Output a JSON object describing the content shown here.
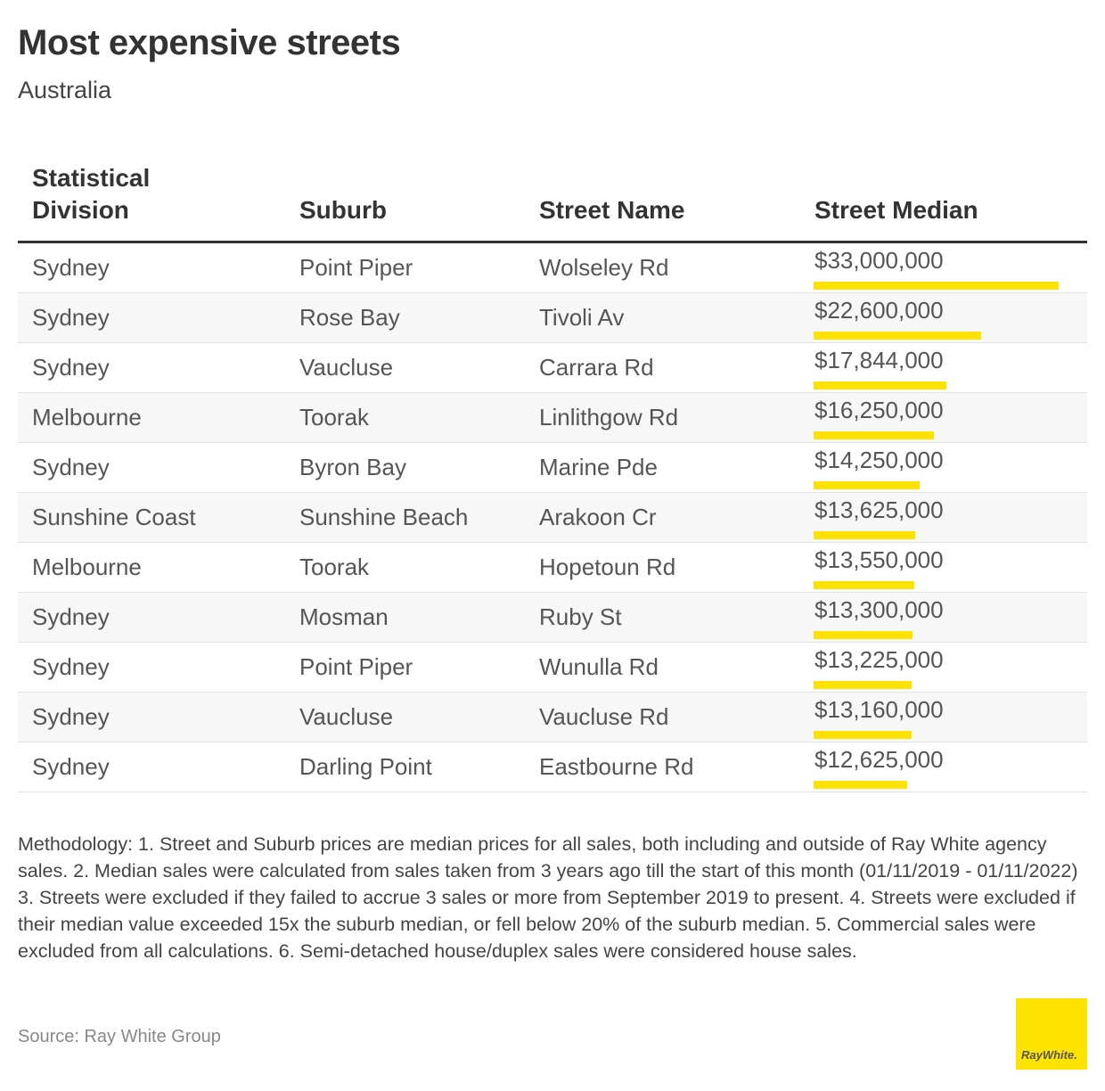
{
  "title": "Most expensive streets",
  "subtitle": "Australia",
  "columns": [
    "Statistical Division",
    "Suburb",
    "Street Name",
    "Street Median"
  ],
  "chart_data": {
    "type": "table",
    "bar_color": "#ffe300",
    "rows": [
      {
        "division": "Sydney",
        "suburb": "Point Piper",
        "street": "Wolseley Rd",
        "median": 33000000,
        "label": "$33,000,000"
      },
      {
        "division": "Sydney",
        "suburb": "Rose Bay",
        "street": "Tivoli Av",
        "median": 22600000,
        "label": "$22,600,000"
      },
      {
        "division": "Sydney",
        "suburb": "Vaucluse",
        "street": "Carrara Rd",
        "median": 17844000,
        "label": "$17,844,000"
      },
      {
        "division": "Melbourne",
        "suburb": "Toorak",
        "street": "Linlithgow Rd",
        "median": 16250000,
        "label": "$16,250,000"
      },
      {
        "division": "Sydney",
        "suburb": "Byron Bay",
        "street": "Marine Pde",
        "median": 14250000,
        "label": "$14,250,000"
      },
      {
        "division": "Sunshine Coast",
        "suburb": "Sunshine Beach",
        "street": "Arakoon Cr",
        "median": 13625000,
        "label": "$13,625,000"
      },
      {
        "division": "Melbourne",
        "suburb": "Toorak",
        "street": "Hopetoun Rd",
        "median": 13550000,
        "label": "$13,550,000"
      },
      {
        "division": "Sydney",
        "suburb": "Mosman",
        "street": "Ruby St",
        "median": 13300000,
        "label": "$13,300,000"
      },
      {
        "division": "Sydney",
        "suburb": "Point Piper",
        "street": "Wunulla Rd",
        "median": 13225000,
        "label": "$13,225,000"
      },
      {
        "division": "Sydney",
        "suburb": "Vaucluse",
        "street": "Vaucluse Rd",
        "median": 13160000,
        "label": "$13,160,000"
      },
      {
        "division": "Sydney",
        "suburb": "Darling Point",
        "street": "Eastbourne Rd",
        "median": 12625000,
        "label": "$12,625,000"
      }
    ]
  },
  "methodology": "Methodology: 1. Street and Suburb prices are median prices for all sales, both including and outside of Ray White agency sales. 2. Median sales were calculated from sales taken from 3 years ago till the start of this month (01/11/2019 - 01/11/2022) 3. Streets were excluded if they failed to accrue 3 sales or more from September 2019 to present. 4. Streets were excluded if their median value exceeded 15x the suburb median, or fell below 20% of the suburb median. 5. Commercial sales were excluded from all calculations. 6. Semi-detached house/duplex sales were considered house sales.",
  "source": "Source: Ray White Group",
  "logo_text": "RayWhite."
}
